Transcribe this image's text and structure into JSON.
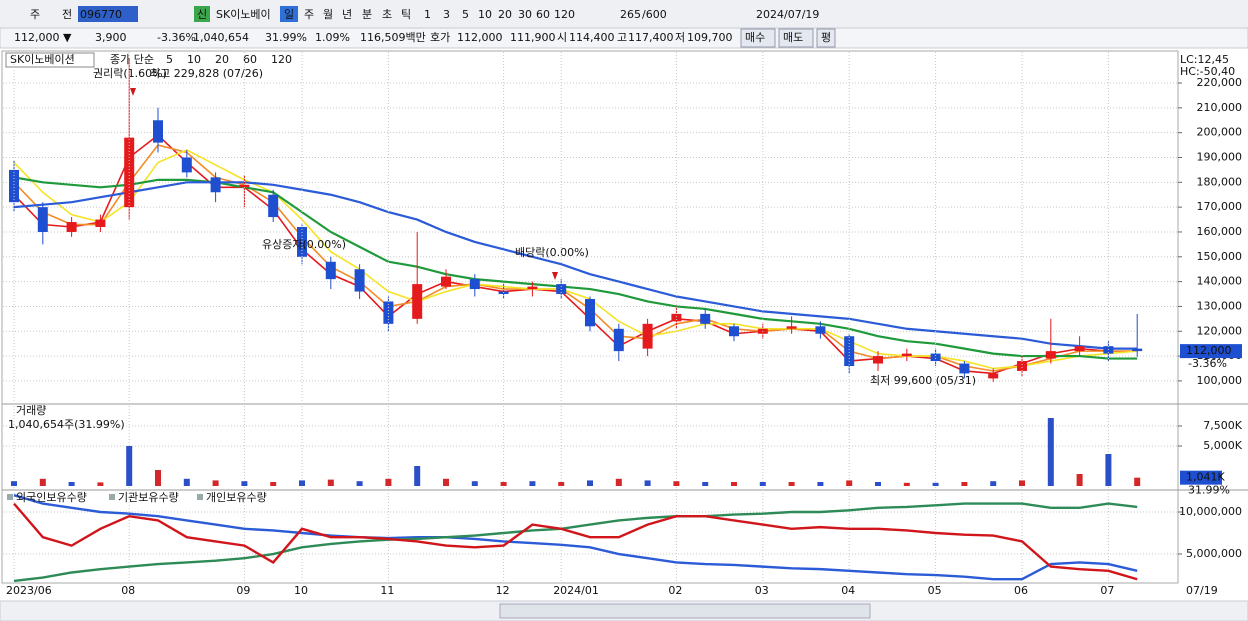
{
  "toolbar": {
    "items": [
      "주",
      "전",
      "096770",
      "신",
      "SK이노베이",
      "일",
      "주",
      "월",
      "년",
      "분",
      "초",
      "틱",
      "1",
      "3",
      "5",
      "10",
      "20",
      "30",
      "60",
      "120",
      "265",
      "/600",
      "2024/07/19"
    ]
  },
  "infobar": {
    "items": [
      "112,000 ▼",
      "3,900",
      "-3.36%",
      "1,040,654",
      "31.99%",
      "1.09%",
      "116,509백만",
      "호가",
      "112,000",
      "111,900",
      "시",
      "114,400",
      "고",
      "117,400",
      "저",
      "109,700",
      "매수",
      "매도",
      "평"
    ]
  },
  "chart_data": [
    {
      "type": "candlestick",
      "title": "SK이노베이션",
      "legend_title": "종가 단순",
      "categories": [
        "2023/06",
        null,
        null,
        null,
        "08",
        null,
        null,
        null,
        "09",
        null,
        "10",
        null,
        null,
        "11",
        null,
        null,
        null,
        "12",
        null,
        "2024/01",
        null,
        null,
        null,
        "02",
        null,
        null,
        "03",
        null,
        null,
        "04",
        null,
        null,
        "05",
        null,
        null,
        "06",
        null,
        null,
        "07",
        null
      ],
      "end_label": "07/19",
      "open": [
        185000,
        170000,
        160000,
        162000,
        170000,
        205000,
        190000,
        182000,
        178000,
        175000,
        162000,
        148000,
        145000,
        132000,
        125000,
        138000,
        141000,
        136000,
        137000,
        139000,
        133000,
        121000,
        113000,
        124000,
        127000,
        122000,
        119000,
        121000,
        122000,
        118000,
        107000,
        110000,
        111000,
        107000,
        101000,
        104000,
        109000,
        112000,
        114000,
        113000
      ],
      "high": [
        189000,
        172000,
        166000,
        167000,
        229800,
        210000,
        193000,
        184000,
        183000,
        177000,
        163000,
        150000,
        147000,
        134000,
        160000,
        145000,
        143000,
        139000,
        140000,
        141000,
        134000,
        123000,
        125000,
        130000,
        129000,
        123000,
        123000,
        126000,
        124000,
        119000,
        112000,
        113000,
        113000,
        108000,
        105000,
        110000,
        125000,
        118000,
        116000,
        127000
      ],
      "low": [
        168000,
        155000,
        158000,
        160000,
        165000,
        192000,
        182000,
        172000,
        170000,
        164000,
        147000,
        137000,
        133000,
        120000,
        123000,
        137000,
        134000,
        133000,
        134000,
        133000,
        120000,
        108000,
        110000,
        121000,
        121000,
        116000,
        117000,
        119000,
        117000,
        103000,
        104000,
        108000,
        106000,
        101000,
        99600,
        102000,
        107000,
        110000,
        108000,
        109700
      ],
      "close": [
        172000,
        160000,
        164000,
        165000,
        198000,
        196000,
        184000,
        176000,
        179000,
        166000,
        150000,
        141000,
        136000,
        123000,
        139000,
        142000,
        137000,
        135000,
        138000,
        135000,
        122000,
        112000,
        123000,
        127000,
        123000,
        118000,
        121000,
        122000,
        119000,
        106000,
        110000,
        111000,
        108000,
        103000,
        103000,
        108000,
        112000,
        114000,
        111000,
        112000
      ],
      "series": [
        {
          "name": "5",
          "color": "#e41a1c",
          "values": [
            175000,
            163000,
            162000,
            164000,
            190000,
            199000,
            188000,
            178000,
            178000,
            169000,
            153000,
            143000,
            138000,
            126000,
            135000,
            140000,
            138000,
            136000,
            137000,
            136000,
            125000,
            114000,
            120000,
            125000,
            124000,
            119000,
            120000,
            121000,
            120000,
            108000,
            109000,
            110000,
            109000,
            104000,
            103000,
            107000,
            111000,
            113000,
            112000,
            112000
          ]
        },
        {
          "name": "10",
          "color": "#f28c28",
          "values": [
            180000,
            168000,
            163000,
            163000,
            180000,
            195000,
            192000,
            182000,
            179000,
            172000,
            158000,
            146000,
            140000,
            130000,
            132000,
            138000,
            139000,
            137000,
            137000,
            137000,
            129000,
            118000,
            117000,
            123000,
            125000,
            121000,
            120000,
            121000,
            121000,
            112000,
            109000,
            110000,
            110000,
            106000,
            104000,
            106000,
            109000,
            112000,
            112000,
            112000
          ]
        },
        {
          "name": "20",
          "color": "#f5e326",
          "values": [
            188000,
            176000,
            167000,
            164000,
            172000,
            188000,
            193000,
            187000,
            181000,
            176000,
            165000,
            152000,
            145000,
            136000,
            132000,
            136000,
            139000,
            138000,
            137000,
            137000,
            133000,
            124000,
            118000,
            120000,
            123000,
            123000,
            121000,
            121000,
            121000,
            116000,
            111000,
            110000,
            110000,
            108000,
            105000,
            106000,
            108000,
            110000,
            111000,
            112000
          ]
        },
        {
          "name": "60",
          "color": "#1f9a3a",
          "values": [
            182000,
            180000,
            179000,
            178000,
            179000,
            181000,
            181000,
            180000,
            178000,
            176000,
            168000,
            160000,
            154000,
            148000,
            146000,
            143000,
            141000,
            140000,
            139000,
            138000,
            137000,
            135000,
            132000,
            130000,
            129000,
            127000,
            125000,
            124000,
            123000,
            121000,
            118000,
            116000,
            115000,
            113000,
            111000,
            110000,
            110000,
            110000,
            109000,
            109000
          ]
        },
        {
          "name": "120",
          "color": "#2b5bd7",
          "values": [
            170000,
            171000,
            172000,
            174000,
            176000,
            178000,
            180000,
            180000,
            180000,
            179000,
            177000,
            175000,
            172000,
            168000,
            165000,
            160000,
            156000,
            153000,
            150000,
            147000,
            143000,
            140000,
            137000,
            134000,
            132000,
            130000,
            128000,
            127000,
            126000,
            125000,
            123000,
            121000,
            120000,
            119000,
            118000,
            117000,
            115000,
            114000,
            113000,
            113000
          ]
        }
      ],
      "up_color": "#e41a1c",
      "down_color": "#1f4fd1",
      "ylim": [
        91100,
        232500
      ],
      "yticks": [
        {
          "value": 100000,
          "label": "100,000"
        },
        {
          "value": 110000,
          "label": "110,000"
        },
        {
          "value": 120000,
          "label": "120,000"
        },
        {
          "value": 130000,
          "label": "130,000"
        },
        {
          "value": 140000,
          "label": "140,000"
        },
        {
          "value": 150000,
          "label": "150,000"
        },
        {
          "value": 160000,
          "label": "160,000"
        },
        {
          "value": 170000,
          "label": "170,000"
        },
        {
          "value": 180000,
          "label": "180,000"
        },
        {
          "value": 190000,
          "label": "190,000"
        },
        {
          "value": 200000,
          "label": "200,000"
        },
        {
          "value": 210000,
          "label": "210,000"
        },
        {
          "value": 220000,
          "label": "220,000"
        }
      ],
      "annotations": [
        "권리락(1.60%)",
        "최고 229,828 (07/26)",
        "유상증자(0.00%)",
        "배당락(0.00%)",
        "최저 99,600 (05/31)"
      ],
      "lc": "LC:12,45",
      "hc": "HC:-50,40",
      "last_label": "112,000",
      "last_change": "-3.36%",
      "grid": true
    },
    {
      "type": "bar",
      "title": "거래량",
      "subtitle": "1,040,654주(31.99%)",
      "color": "#d62728",
      "values": [
        600,
        900,
        500,
        450,
        5000,
        2000,
        900,
        700,
        600,
        500,
        700,
        800,
        600,
        900,
        2500,
        900,
        600,
        500,
        600,
        500,
        700,
        900,
        700,
        600,
        500,
        500,
        500,
        500,
        500,
        700,
        500,
        400,
        400,
        500,
        600,
        700,
        8500,
        1500,
        4000,
        1041
      ],
      "ylim": [
        -250,
        10125
      ],
      "yticks": [
        {
          "value": 7500,
          "label": "7,500K"
        },
        {
          "value": 5000,
          "label": "5,000K"
        }
      ],
      "last_label": "1,041K",
      "last_change": "31.99%",
      "grid": true
    },
    {
      "type": "line",
      "series": [
        {
          "name": "외국인보유수량",
          "color": "#2b5bd7",
          "values": [
            12000000,
            11000000,
            10500000,
            10000000,
            9800000,
            9500000,
            9000000,
            8500000,
            8000000,
            7800000,
            7500000,
            7200000,
            7000000,
            6900000,
            7000000,
            7000000,
            6800000,
            6500000,
            6300000,
            6100000,
            5800000,
            5000000,
            4500000,
            4000000,
            3800000,
            3700000,
            3500000,
            3300000,
            3200000,
            3000000,
            2800000,
            2600000,
            2500000,
            2300000,
            2000000,
            2000000,
            3800000,
            4000000,
            3800000,
            3000000
          ]
        },
        {
          "name": "기관보유수량",
          "color": "#2e8b57",
          "values": [
            1800000,
            2200000,
            2800000,
            3200000,
            3500000,
            3800000,
            4000000,
            4200000,
            4500000,
            5000000,
            5800000,
            6200000,
            6500000,
            6700000,
            6800000,
            7000000,
            7200000,
            7500000,
            7800000,
            8000000,
            8500000,
            9000000,
            9300000,
            9500000,
            9500000,
            9700000,
            9800000,
            10000000,
            10000000,
            10200000,
            10500000,
            10600000,
            10800000,
            11000000,
            11000000,
            11000000,
            10500000,
            10500000,
            11000000,
            10600000
          ]
        },
        {
          "name": "개인보유수량",
          "color": "#d0161b",
          "values": [
            11000000,
            7000000,
            6000000,
            8000000,
            9500000,
            9000000,
            7000000,
            6500000,
            6000000,
            4000000,
            8000000,
            7000000,
            7000000,
            6800000,
            6500000,
            6000000,
            5800000,
            6000000,
            8500000,
            8000000,
            7000000,
            7000000,
            8500000,
            9500000,
            9500000,
            9000000,
            8500000,
            8000000,
            8200000,
            8000000,
            8000000,
            7800000,
            7500000,
            7300000,
            7200000,
            6500000,
            3500000,
            3200000,
            3000000,
            2000000
          ]
        }
      ],
      "ylim": [
        1550000,
        12380000
      ],
      "yticks": [
        {
          "value": 10000000,
          "label": "10,000,000"
        },
        {
          "value": 5000000,
          "label": "5,000,000"
        }
      ],
      "grid": true
    }
  ]
}
